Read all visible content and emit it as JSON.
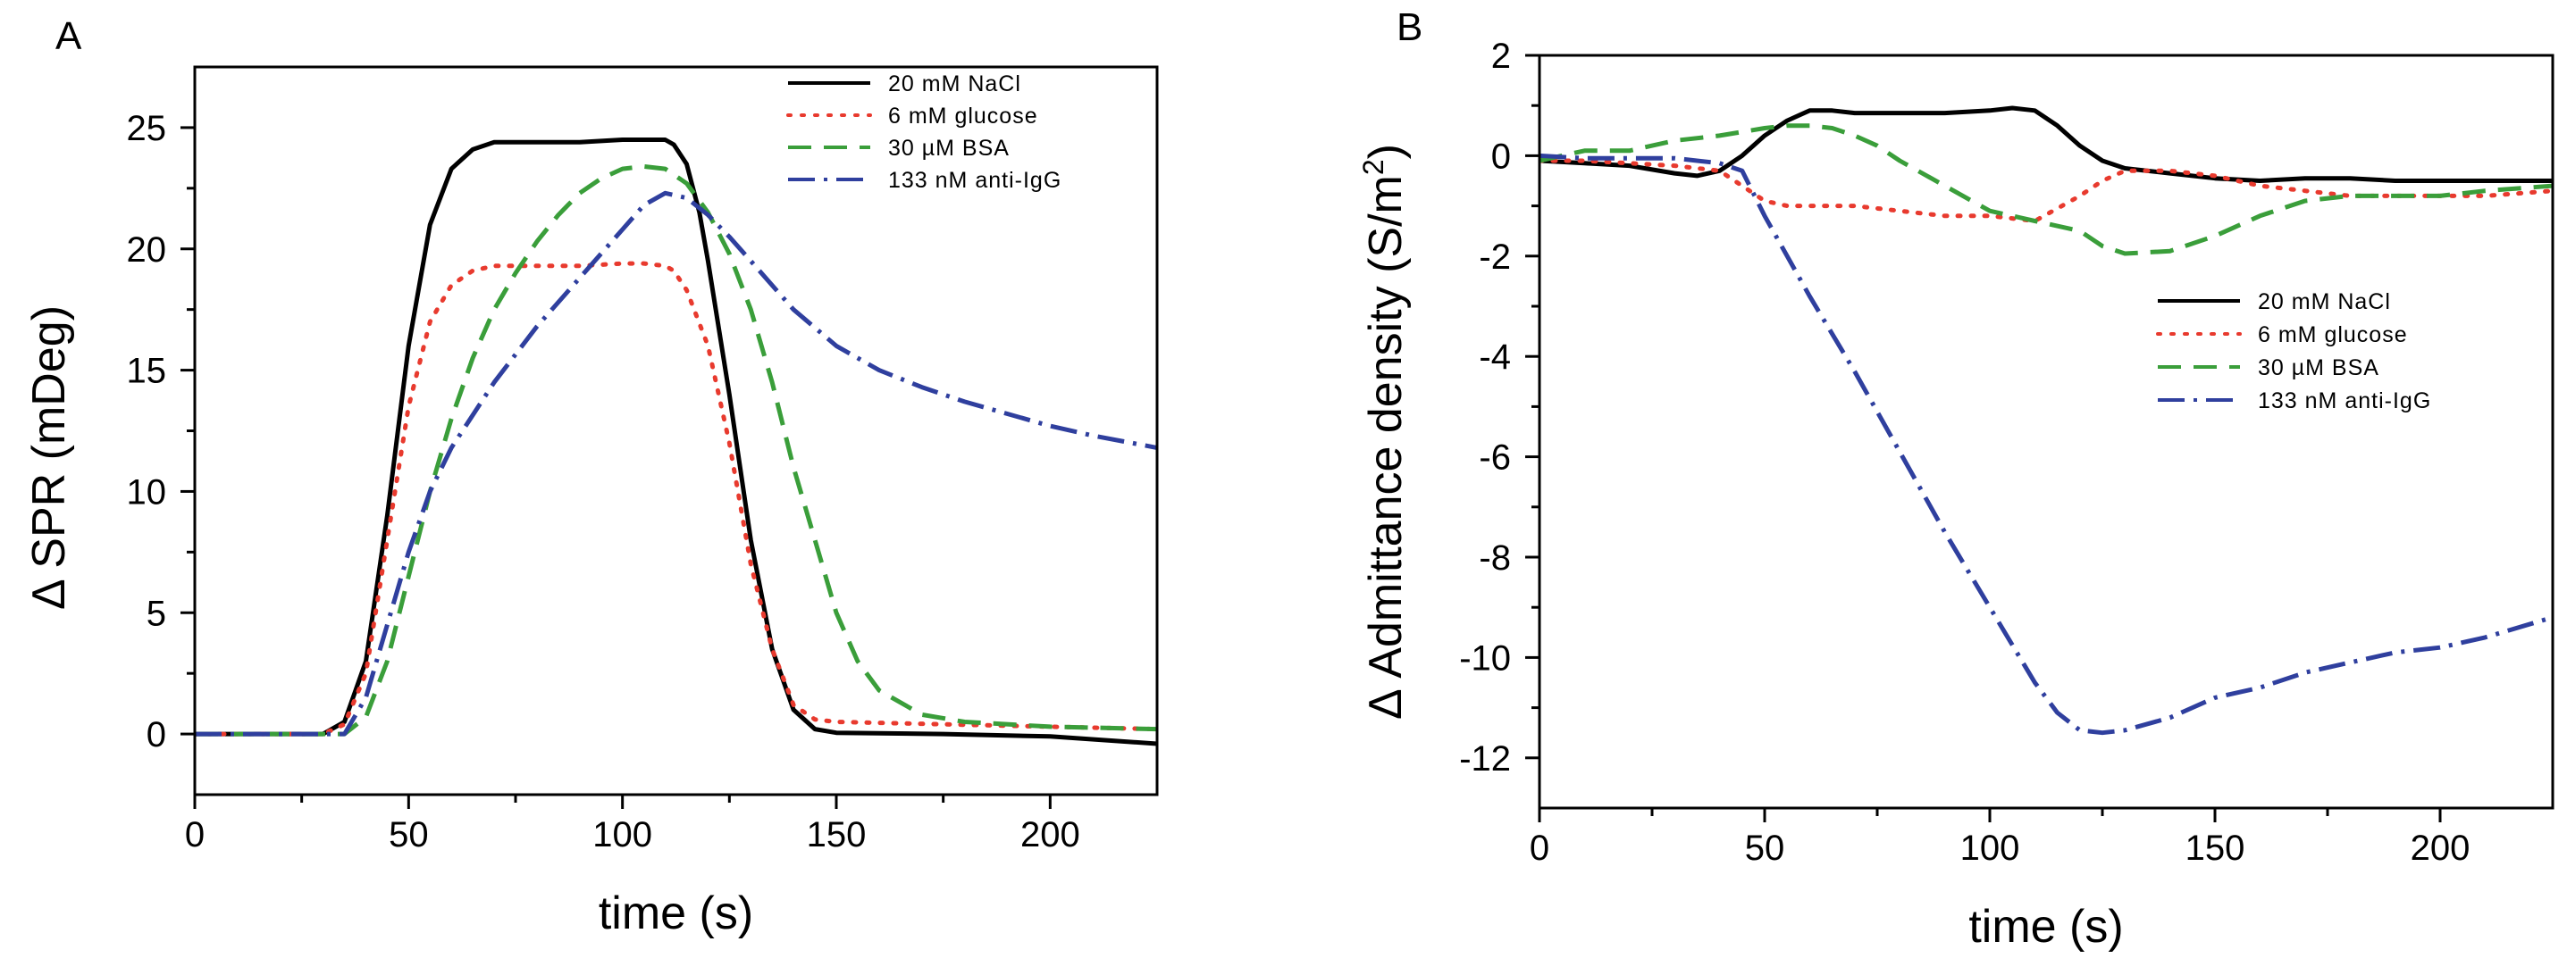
{
  "figure": {
    "panels": [
      {
        "id": "A",
        "letter": "A",
        "type": "line",
        "title": "",
        "xlabel": "time (s)",
        "ylabel": "Δ SPR (mDeg)",
        "xlim": [
          0,
          225
        ],
        "ylim": [
          -2.5,
          27.5
        ],
        "xticks": [
          0,
          50,
          100,
          150,
          200
        ],
        "yticks": [
          0,
          5,
          10,
          15,
          20,
          25
        ],
        "legend_position": "top-right",
        "series": [
          {
            "name": "20 mM NaCl",
            "color": "#000000",
            "dash": "solid",
            "x": [
              0,
              30,
              35,
              40,
              45,
              50,
              55,
              60,
              65,
              70,
              75,
              80,
              90,
              100,
              105,
              110,
              112,
              115,
              118,
              120,
              125,
              130,
              135,
              140,
              145,
              150,
              175,
              200,
              225
            ],
            "y": [
              0,
              0,
              0.5,
              3,
              9,
              16,
              21,
              23.3,
              24.1,
              24.4,
              24.4,
              24.4,
              24.4,
              24.5,
              24.5,
              24.5,
              24.3,
              23.5,
              21.5,
              19.5,
              14,
              8,
              3.5,
              1,
              0.2,
              0.05,
              0,
              -0.1,
              -0.4
            ]
          },
          {
            "name": "6 mM glucose",
            "color": "#e83a2e",
            "dash": "dot",
            "x": [
              0,
              30,
              35,
              40,
              45,
              50,
              55,
              60,
              65,
              70,
              80,
              90,
              100,
              105,
              110,
              112,
              115,
              120,
              125,
              130,
              135,
              140,
              145,
              150,
              175,
              200,
              225
            ],
            "y": [
              0,
              0,
              0.4,
              2.5,
              8,
              13.5,
              17,
              18.5,
              19.1,
              19.3,
              19.3,
              19.3,
              19.4,
              19.4,
              19.3,
              19.1,
              18.3,
              16,
              12,
              7,
              3.5,
              1.2,
              0.6,
              0.5,
              0.4,
              0.3,
              0.2
            ]
          },
          {
            "name": "30 µM BSA",
            "color": "#3a9e3a",
            "dash": "dash",
            "x": [
              0,
              35,
              40,
              45,
              50,
              55,
              60,
              65,
              70,
              75,
              80,
              85,
              90,
              95,
              100,
              105,
              110,
              115,
              120,
              125,
              130,
              135,
              140,
              145,
              150,
              155,
              160,
              170,
              180,
              200,
              225
            ],
            "y": [
              0,
              0,
              0.7,
              3,
              6.5,
              10,
              13,
              15.5,
              17.5,
              19,
              20.3,
              21.4,
              22.3,
              22.9,
              23.3,
              23.4,
              23.3,
              22.7,
              21.5,
              19.8,
              17.5,
              14.5,
              11,
              8,
              5,
              3,
              1.8,
              0.8,
              0.5,
              0.3,
              0.2
            ]
          },
          {
            "name": "133 nM anti-IgG",
            "color": "#2f3f9e",
            "dash": "dashdot",
            "x": [
              0,
              35,
              40,
              45,
              50,
              55,
              60,
              70,
              80,
              90,
              100,
              105,
              110,
              115,
              120,
              125,
              130,
              140,
              150,
              160,
              170,
              180,
              190,
              200,
              210,
              225
            ],
            "y": [
              0,
              0,
              1.5,
              4.5,
              7.5,
              10,
              11.8,
              14.5,
              16.8,
              18.8,
              20.8,
              21.8,
              22.3,
              22.1,
              21.4,
              20.5,
              19.5,
              17.5,
              16,
              15,
              14.3,
              13.7,
              13.2,
              12.7,
              12.3,
              11.8
            ]
          }
        ]
      },
      {
        "id": "B",
        "letter": "B",
        "type": "line",
        "title": "",
        "xlabel": "time (s)",
        "ylabel": "Δ Admittance density (S/m",
        "ylabel_sup": "2",
        "ylabel_end": ")",
        "xlim": [
          0,
          225
        ],
        "ylim": [
          -13,
          2
        ],
        "xticks": [
          0,
          50,
          100,
          150,
          200
        ],
        "yticks": [
          2,
          0,
          -2,
          -4,
          -6,
          -8,
          -10,
          -12
        ],
        "legend_position": "center-right",
        "series": [
          {
            "name": "20 mM NaCl",
            "color": "#000000",
            "dash": "solid",
            "x": [
              0,
              10,
              20,
              30,
              35,
              40,
              45,
              50,
              55,
              60,
              65,
              70,
              80,
              90,
              100,
              105,
              110,
              115,
              120,
              125,
              130,
              140,
              150,
              160,
              170,
              180,
              190,
              200,
              225
            ],
            "y": [
              -0.1,
              -0.15,
              -0.2,
              -0.35,
              -0.4,
              -0.3,
              0,
              0.4,
              0.7,
              0.9,
              0.9,
              0.85,
              0.85,
              0.85,
              0.9,
              0.95,
              0.9,
              0.6,
              0.2,
              -0.1,
              -0.25,
              -0.35,
              -0.45,
              -0.5,
              -0.45,
              -0.45,
              -0.5,
              -0.5,
              -0.5
            ]
          },
          {
            "name": "6 mM glucose",
            "color": "#e83a2e",
            "dash": "dot",
            "x": [
              0,
              10,
              20,
              30,
              40,
              45,
              50,
              55,
              60,
              70,
              80,
              90,
              100,
              110,
              120,
              125,
              130,
              140,
              150,
              160,
              170,
              180,
              190,
              200,
              210,
              225
            ],
            "y": [
              -0.1,
              -0.1,
              -0.15,
              -0.2,
              -0.3,
              -0.6,
              -0.9,
              -1.0,
              -1.0,
              -1.0,
              -1.1,
              -1.2,
              -1.2,
              -1.3,
              -0.8,
              -0.5,
              -0.3,
              -0.3,
              -0.4,
              -0.6,
              -0.7,
              -0.8,
              -0.8,
              -0.8,
              -0.8,
              -0.7
            ]
          },
          {
            "name": "30 µM BSA",
            "color": "#3a9e3a",
            "dash": "dash",
            "x": [
              0,
              10,
              20,
              30,
              40,
              50,
              55,
              60,
              65,
              70,
              75,
              80,
              90,
              100,
              110,
              120,
              125,
              130,
              140,
              150,
              160,
              170,
              180,
              190,
              200,
              210,
              225
            ],
            "y": [
              -0.1,
              0.1,
              0.1,
              0.3,
              0.4,
              0.55,
              0.6,
              0.6,
              0.55,
              0.4,
              0.2,
              -0.1,
              -0.6,
              -1.1,
              -1.3,
              -1.5,
              -1.8,
              -1.95,
              -1.9,
              -1.6,
              -1.2,
              -0.9,
              -0.8,
              -0.8,
              -0.8,
              -0.7,
              -0.6
            ]
          },
          {
            "name": "133 nM anti-IgG",
            "color": "#2f3f9e",
            "dash": "dashdot",
            "x": [
              0,
              10,
              20,
              30,
              40,
              45,
              50,
              60,
              70,
              80,
              90,
              100,
              110,
              115,
              120,
              125,
              130,
              140,
              150,
              160,
              170,
              180,
              190,
              200,
              210,
              225
            ],
            "y": [
              0,
              -0.05,
              -0.05,
              -0.05,
              -0.15,
              -0.3,
              -1.2,
              -2.8,
              -4.3,
              -5.9,
              -7.5,
              -9.0,
              -10.5,
              -11.1,
              -11.45,
              -11.5,
              -11.45,
              -11.2,
              -10.8,
              -10.6,
              -10.3,
              -10.1,
              -9.9,
              -9.8,
              -9.6,
              -9.2
            ]
          }
        ]
      }
    ]
  }
}
